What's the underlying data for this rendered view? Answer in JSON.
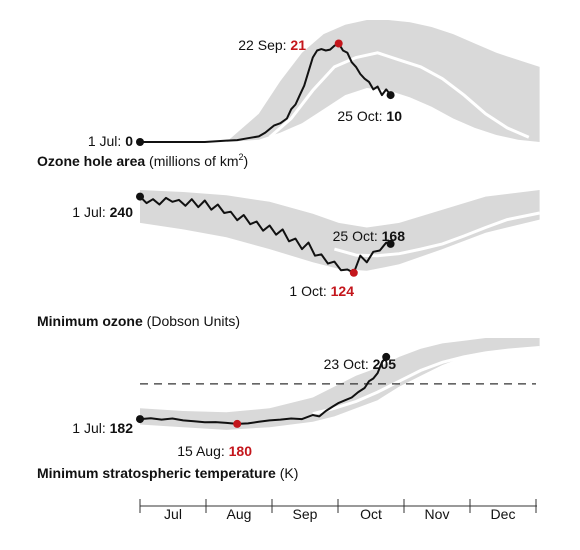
{
  "colors": {
    "band": "#d9d9d9",
    "median": "#ffffff",
    "line": "#111111",
    "highlight": "#c4161c",
    "dashed": "#333333"
  },
  "months": [
    "Jul",
    "Aug",
    "Sep",
    "Oct",
    "Nov",
    "Dec"
  ],
  "chart_data": [
    {
      "type": "area",
      "title": "Ozone hole area",
      "unit_pre": "(millions of km",
      "unit_sup": "2",
      "unit_post": ")",
      "x_unit": "day of season (Jul 1 = 0)",
      "ylim": [
        0,
        26
      ],
      "start": {
        "date": "1 Jul",
        "value": "0"
      },
      "peak": {
        "date": "22 Sep",
        "value": "21"
      },
      "end": {
        "date": "25 Oct",
        "value": "10"
      },
      "band_x": [
        0,
        40,
        55,
        65,
        75,
        85,
        95,
        105,
        115,
        125,
        135,
        145,
        155,
        165,
        175,
        185
      ],
      "band_lower": [
        0,
        0,
        0.5,
        2,
        4,
        7,
        10,
        11.5,
        11,
        9.5,
        7.5,
        5,
        3,
        1.5,
        0.5,
        0
      ],
      "band_upper": [
        0,
        0,
        6,
        13,
        19,
        23,
        25,
        26,
        26,
        25.5,
        24.5,
        23,
        21,
        19,
        17.5,
        16
      ],
      "median_x": [
        60,
        70,
        80,
        90,
        100,
        110,
        120,
        130,
        140,
        150,
        160,
        170,
        180
      ],
      "median": [
        1,
        5,
        11,
        16,
        18,
        19,
        17.5,
        16,
        13.5,
        10,
        6,
        3,
        1
      ],
      "series_x": [
        0,
        30,
        40,
        45,
        50,
        55,
        58,
        62,
        65,
        68,
        70,
        72,
        74,
        76,
        78,
        80,
        82,
        84,
        86,
        88,
        90,
        92,
        94,
        96,
        98,
        100,
        102,
        104,
        106,
        108,
        110,
        112,
        114,
        116
      ],
      "series": [
        0,
        0,
        0.3,
        0.4,
        0.8,
        1.2,
        2,
        3.5,
        4,
        5,
        7,
        8,
        10,
        12,
        15,
        18,
        19.5,
        19.8,
        19.5,
        19.7,
        20.5,
        21,
        19.5,
        19,
        17,
        16,
        14.5,
        13.5,
        12.8,
        11.2,
        11.8,
        10,
        11.2,
        10
      ]
    },
    {
      "type": "area",
      "title": "Minimum ozone",
      "unit": "(Dobson Units)",
      "x_unit": "day of season (Jul 1 = 0)",
      "ylim": [
        110,
        250
      ],
      "start": {
        "date": "1 Jul",
        "value": "240"
      },
      "low": {
        "date": "1 Oct",
        "value": "124"
      },
      "end": {
        "date": "25 Oct",
        "value": "168"
      },
      "band_x": [
        0,
        20,
        40,
        60,
        80,
        92,
        105,
        120,
        140,
        160,
        185
      ],
      "band_lower": [
        200,
        190,
        178,
        160,
        140,
        130,
        127,
        137,
        160,
        185,
        205
      ],
      "band_upper": [
        250,
        247,
        242,
        232,
        214,
        200,
        193,
        200,
        220,
        240,
        250
      ],
      "median_x": [
        90,
        100,
        110,
        120,
        130,
        140,
        150,
        160,
        170,
        185
      ],
      "median": [
        160,
        151,
        150,
        153,
        160,
        168,
        180,
        193,
        205,
        215
      ],
      "series_x": [
        0,
        3,
        6,
        9,
        12,
        15,
        18,
        21,
        24,
        27,
        30,
        33,
        36,
        39,
        42,
        45,
        48,
        51,
        54,
        57,
        60,
        63,
        66,
        69,
        72,
        75,
        78,
        81,
        84,
        87,
        90,
        93,
        96,
        99,
        102,
        105,
        108,
        111,
        114,
        116
      ],
      "series": [
        240,
        230,
        236,
        228,
        238,
        232,
        235,
        226,
        236,
        224,
        234,
        220,
        228,
        215,
        217,
        204,
        212,
        198,
        202,
        188,
        196,
        182,
        190,
        172,
        176,
        160,
        170,
        150,
        152,
        138,
        141,
        128,
        129,
        124,
        150,
        140,
        156,
        158,
        170,
        168
      ]
    },
    {
      "type": "area",
      "title": "Minimum stratospheric temperature",
      "unit": "(K)",
      "x_unit": "day of season (Jul 1 = 0)",
      "ylim": [
        175,
        212
      ],
      "threshold": 195,
      "start": {
        "date": "1 Jul",
        "value": "182"
      },
      "low": {
        "date": "15 Aug",
        "value": "180"
      },
      "end": {
        "date": "23 Oct",
        "value": "205"
      },
      "band_x": [
        0,
        20,
        40,
        60,
        70,
        80,
        90,
        100,
        110,
        120,
        130,
        140,
        150,
        160,
        170,
        185
      ],
      "band_lower": [
        180,
        179,
        178,
        179,
        180,
        181,
        183,
        186,
        189,
        194,
        198,
        202,
        205,
        206,
        207.5,
        208
      ],
      "band_upper": [
        186,
        185,
        184.5,
        186,
        188,
        190,
        194,
        198,
        201,
        205,
        208,
        210,
        211,
        212,
        212,
        212
      ],
      "median_x": [
        80,
        90,
        100,
        110,
        120,
        130,
        140,
        150,
        160,
        170,
        185
      ],
      "median": [
        184,
        186,
        188.5,
        192,
        196,
        200,
        203,
        205,
        206.5,
        207.5,
        208.5
      ],
      "series_x": [
        0,
        5,
        10,
        15,
        20,
        25,
        30,
        35,
        40,
        45,
        50,
        55,
        60,
        65,
        70,
        75,
        80,
        83,
        86,
        89,
        92,
        95,
        98,
        101,
        104,
        106,
        108,
        110,
        112,
        114
      ],
      "series": [
        182,
        182.3,
        181.8,
        182.2,
        181.5,
        181.2,
        180.8,
        180.9,
        180.6,
        180.2,
        180.4,
        181,
        181.5,
        181.8,
        182.2,
        182,
        183.5,
        183,
        185,
        186.5,
        188,
        189,
        190,
        192,
        193.5,
        196,
        197,
        199,
        203,
        205
      ]
    }
  ]
}
